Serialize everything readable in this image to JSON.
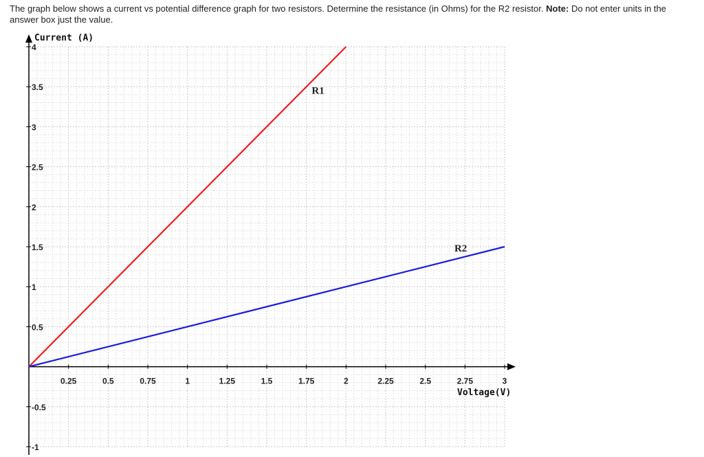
{
  "question": {
    "text": "The graph below shows a current vs potential difference graph for two resistors. Determine the resistance (in Ohms) for the R2 resistor.",
    "note_label": "Note:",
    "note_text": "Do not enter units in the answer box just the value."
  },
  "chart_data": {
    "type": "line",
    "xlabel": "Voltage(V)",
    "ylabel": "Current (A)",
    "xlim": [
      0,
      3
    ],
    "ylim": [
      -1,
      4
    ],
    "x_ticks": [
      "0.25",
      "0.5",
      "0.75",
      "1",
      "1.25",
      "1.5",
      "1.75",
      "2",
      "2.25",
      "2.5",
      "2.75",
      "3"
    ],
    "y_ticks": [
      "-1",
      "-0.5",
      "0.5",
      "1",
      "1.5",
      "2",
      "2.5",
      "3",
      "3.5",
      "4"
    ],
    "grid": true,
    "series": [
      {
        "name": "R1",
        "color": "#ee1c1c",
        "x": [
          0,
          2
        ],
        "y": [
          0,
          4
        ]
      },
      {
        "name": "R2",
        "color": "#1c1cdd",
        "x": [
          0,
          3
        ],
        "y": [
          0,
          1.5
        ]
      }
    ]
  }
}
